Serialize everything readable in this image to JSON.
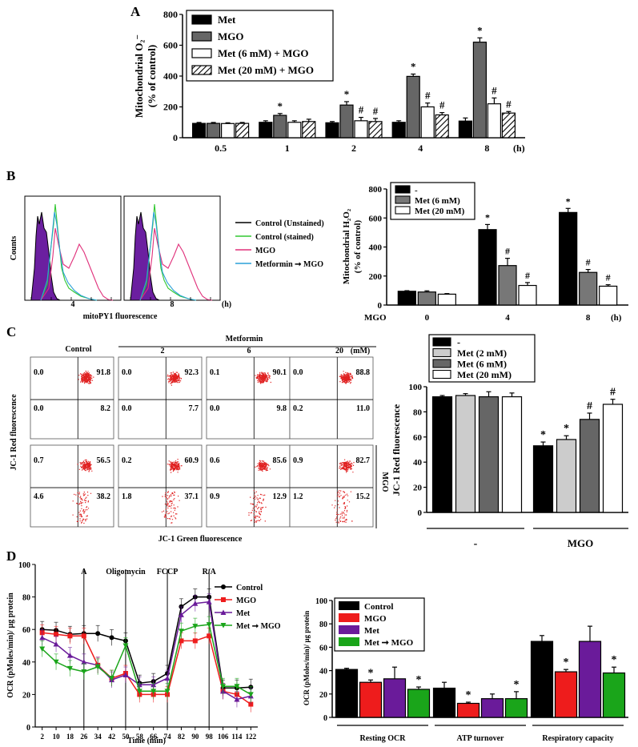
{
  "chart_data": [
    {
      "panel": "A",
      "type": "bar",
      "ylabel_line1": "Mitochondrial O₂⁻",
      "ylabel_line2": "(% of control)",
      "xunit": "(h)",
      "categories": [
        "0.5",
        "1",
        "2",
        "4",
        "8"
      ],
      "ylim": [
        0,
        800
      ],
      "yticks": [
        "0",
        "200",
        "400",
        "600",
        "800"
      ],
      "series": [
        {
          "name": "Met",
          "fill": "#000000",
          "values": [
            93,
            100,
            97,
            100,
            108
          ],
          "err": [
            6,
            10,
            8,
            10,
            20
          ],
          "marks": [
            "",
            "",
            "",
            "",
            ""
          ]
        },
        {
          "name": "MGO",
          "fill": "#666666",
          "values": [
            93,
            145,
            212,
            398,
            620
          ],
          "err": [
            6,
            12,
            22,
            15,
            28
          ],
          "marks": [
            "",
            "*",
            "*",
            "*",
            "*"
          ]
        },
        {
          "name": "Met (6 mM) + MGO",
          "fill": "#ffffff",
          "values": [
            92,
            100,
            110,
            200,
            220
          ],
          "err": [
            5,
            10,
            22,
            25,
            38
          ],
          "marks": [
            "",
            "",
            "#",
            "#",
            "#"
          ]
        },
        {
          "name": "Met (20 mM) + MGO",
          "fill": "hatch",
          "values": [
            93,
            105,
            105,
            148,
            160
          ],
          "err": [
            6,
            15,
            20,
            15,
            10
          ],
          "marks": [
            "",
            "",
            "#",
            "#",
            "#"
          ]
        }
      ]
    },
    {
      "panel": "B",
      "type": "bar",
      "ylabel_line1": "Mitochondrial H₂O₂",
      "ylabel_line2": "(% of control)",
      "xlabel": "MGO",
      "xunit": "(h)",
      "categories": [
        "0",
        "4",
        "8"
      ],
      "ylim": [
        0,
        800
      ],
      "yticks": [
        "0",
        "200",
        "400",
        "600",
        "800"
      ],
      "series": [
        {
          "name": "-",
          "fill": "#000000",
          "values": [
            95,
            520,
            638
          ],
          "err": [
            4,
            35,
            28
          ],
          "marks": [
            "",
            "*",
            "*"
          ]
        },
        {
          "name": "Met (6 mM)",
          "fill": "#777777",
          "values": [
            90,
            272,
            225
          ],
          "err": [
            8,
            50,
            20
          ],
          "marks": [
            "",
            "#",
            "#"
          ]
        },
        {
          "name": "Met (20 mM)",
          "fill": "#ffffff",
          "values": [
            75,
            135,
            130
          ],
          "err": [
            4,
            20,
            10
          ],
          "marks": [
            "",
            "#",
            "#"
          ]
        }
      ]
    },
    {
      "panel": "C",
      "type": "bar",
      "ylabel": "JC-1 Red fluorescence",
      "categories": [
        "-",
        "MGO"
      ],
      "ylim": [
        0,
        100
      ],
      "yticks": [
        "0",
        "20",
        "40",
        "60",
        "80",
        "100"
      ],
      "series": [
        {
          "name": "-",
          "fill": "#000000",
          "values": [
            92,
            53
          ],
          "err": [
            1,
            3
          ],
          "marks": [
            "",
            "*"
          ]
        },
        {
          "name": "Met (2 mM)",
          "fill": "#cccccc",
          "values": [
            93,
            58
          ],
          "err": [
            1.5,
            3
          ],
          "marks": [
            "",
            "*"
          ]
        },
        {
          "name": "Met (6 mM)",
          "fill": "#666666",
          "values": [
            92,
            74
          ],
          "err": [
            4,
            5
          ],
          "marks": [
            "",
            "#"
          ]
        },
        {
          "name": "Met (20 mM)",
          "fill": "#ffffff",
          "values": [
            92,
            86
          ],
          "err": [
            3,
            4
          ],
          "marks": [
            "",
            "#"
          ]
        }
      ]
    },
    {
      "panel": "D-line",
      "type": "line",
      "ylabel": "OCR (pMoles/min)/ µg protein",
      "xlabel": "Time (min)",
      "x": [
        2,
        10,
        18,
        26,
        34,
        42,
        50,
        58,
        66,
        74,
        82,
        90,
        98,
        106,
        114,
        122
      ],
      "xticks": [
        "2",
        "10",
        "18",
        "26",
        "34",
        "42",
        "50",
        "58",
        "66",
        "74",
        "82",
        "90",
        "98",
        "106",
        "114",
        "122"
      ],
      "ylim": [
        0,
        100
      ],
      "yticks": [
        "0",
        "20",
        "40",
        "60",
        "80",
        "100"
      ],
      "injections": [
        {
          "label": "A",
          "x": 26
        },
        {
          "label": "Oligomycin",
          "x": 50
        },
        {
          "label": "FCCP",
          "x": 74
        },
        {
          "label": "R/A",
          "x": 98
        }
      ],
      "series": [
        {
          "name": "Control",
          "color": "#000000",
          "marker": "circle",
          "values": [
            60,
            59.5,
            57,
            57.5,
            57.5,
            55,
            53,
            27,
            28,
            33,
            74,
            80,
            80,
            24,
            24,
            24.5
          ]
        },
        {
          "name": "MGO",
          "color": "#ee1c1c",
          "marker": "square",
          "values": [
            58,
            57,
            56,
            56,
            38,
            30,
            33,
            20,
            20,
            20,
            53,
            53,
            56,
            22,
            20,
            14
          ]
        },
        {
          "name": "Met",
          "color": "#6a1b9a",
          "marker": "triangle",
          "values": [
            55,
            51,
            44,
            40,
            38,
            29,
            32,
            26,
            26,
            30,
            69,
            76,
            77,
            22,
            17,
            19
          ]
        },
        {
          "name": "Met ➞ MGO",
          "color": "#1aa51a",
          "marker": "triangle-down",
          "values": [
            48,
            40,
            36,
            34,
            37,
            30,
            50,
            22,
            22,
            22,
            59,
            62,
            63,
            25,
            25,
            20
          ]
        }
      ]
    },
    {
      "panel": "D-bar",
      "type": "bar",
      "ylabel": "OCR (pMoles/min)/ µg protein",
      "categories": [
        "Resting OCR",
        "ATP turnover",
        "Respiratory capacity"
      ],
      "ylim": [
        0,
        100
      ],
      "yticks": [
        "0",
        "20",
        "40",
        "60",
        "80",
        "100"
      ],
      "series": [
        {
          "name": "Control",
          "fill": "#000000",
          "values": [
            41,
            25,
            65
          ],
          "err": [
            1,
            5,
            5
          ],
          "marks": [
            "",
            "",
            ""
          ]
        },
        {
          "name": "MGO",
          "fill": "#ee1c1c",
          "values": [
            30,
            12,
            39
          ],
          "err": [
            2,
            1,
            2
          ],
          "marks": [
            "*",
            "*",
            "*"
          ]
        },
        {
          "name": "Met",
          "fill": "#6a1b9a",
          "values": [
            33,
            16,
            65
          ],
          "err": [
            10,
            4,
            13
          ],
          "marks": [
            "",
            "",
            ""
          ]
        },
        {
          "name": "Met ➞ MGO",
          "fill": "#1aa51a",
          "values": [
            24,
            16,
            38
          ],
          "err": [
            2,
            6,
            5
          ],
          "marks": [
            "*",
            "*",
            "*"
          ]
        }
      ]
    }
  ],
  "labels": {
    "panelA": "A",
    "panelB": "B",
    "panelC": "C",
    "panelD": "D",
    "flow_ylabel": "Counts",
    "flow_xlabel": "mitoPY1 fluorescence",
    "flow_time1": "4",
    "flow_time2": "8",
    "flow_unit": "(h)",
    "flow_legend": [
      "Control (Unstained)",
      "Control (stained)",
      "MGO",
      "Metformin ➞ MGO"
    ],
    "flow_colors": [
      "#000000",
      "#32c832",
      "#e0307a",
      "#2aa0d8"
    ],
    "jc1_control": "Control",
    "jc1_metformin": "Metformin",
    "jc1_conc": [
      "2",
      "6",
      "20"
    ],
    "jc1_unit": "(mM)",
    "jc1_ylabel": "JC-1 Red fluorescence",
    "jc1_xlabel": "JC-1 Green fluorescence",
    "jc1_mgo": "MGO",
    "quadrants_top": [
      [
        "0.0",
        "91.8",
        "0.0",
        "8.2"
      ],
      [
        "0.0",
        "92.3",
        "0.0",
        "7.7"
      ],
      [
        "0.1",
        "90.1",
        "0.0",
        "9.8"
      ],
      [
        "0.0",
        "88.8",
        "0.2",
        "11.0"
      ]
    ],
    "quadrants_bottom": [
      [
        "0.7",
        "56.5",
        "4.6",
        "38.2"
      ],
      [
        "0.2",
        "60.9",
        "1.8",
        "37.1"
      ],
      [
        "0.6",
        "85.6",
        "0.9",
        "12.9"
      ],
      [
        "0.9",
        "82.7",
        "1.2",
        "15.2"
      ]
    ]
  }
}
